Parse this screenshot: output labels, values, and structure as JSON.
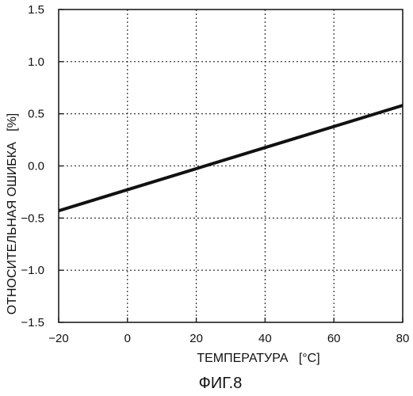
{
  "chart_data": {
    "type": "line",
    "xlabel": "ТЕМПЕРАТУРА   [°C]",
    "ylabel": "ОТНОСИТЕЛЬНАЯ ОШИБКА   [%]",
    "caption": "ФИГ.8",
    "xlim": [
      -20,
      80
    ],
    "ylim": [
      -1.5,
      1.5
    ],
    "x_ticks": [
      -20,
      0,
      20,
      40,
      60,
      80
    ],
    "x_tick_labels": [
      "−20",
      "0",
      "20",
      "40",
      "60",
      "80"
    ],
    "y_ticks": [
      1.5,
      1.0,
      0.5,
      0.0,
      -0.5,
      -1.0,
      -1.5
    ],
    "y_tick_labels": [
      "1.5",
      "1.0",
      "0.5",
      "0.0",
      "−0.5",
      "−1.0",
      "−1.5"
    ],
    "grid": true,
    "series": [
      {
        "x": [
          -20,
          80
        ],
        "y": [
          -0.43,
          0.58
        ]
      }
    ]
  }
}
